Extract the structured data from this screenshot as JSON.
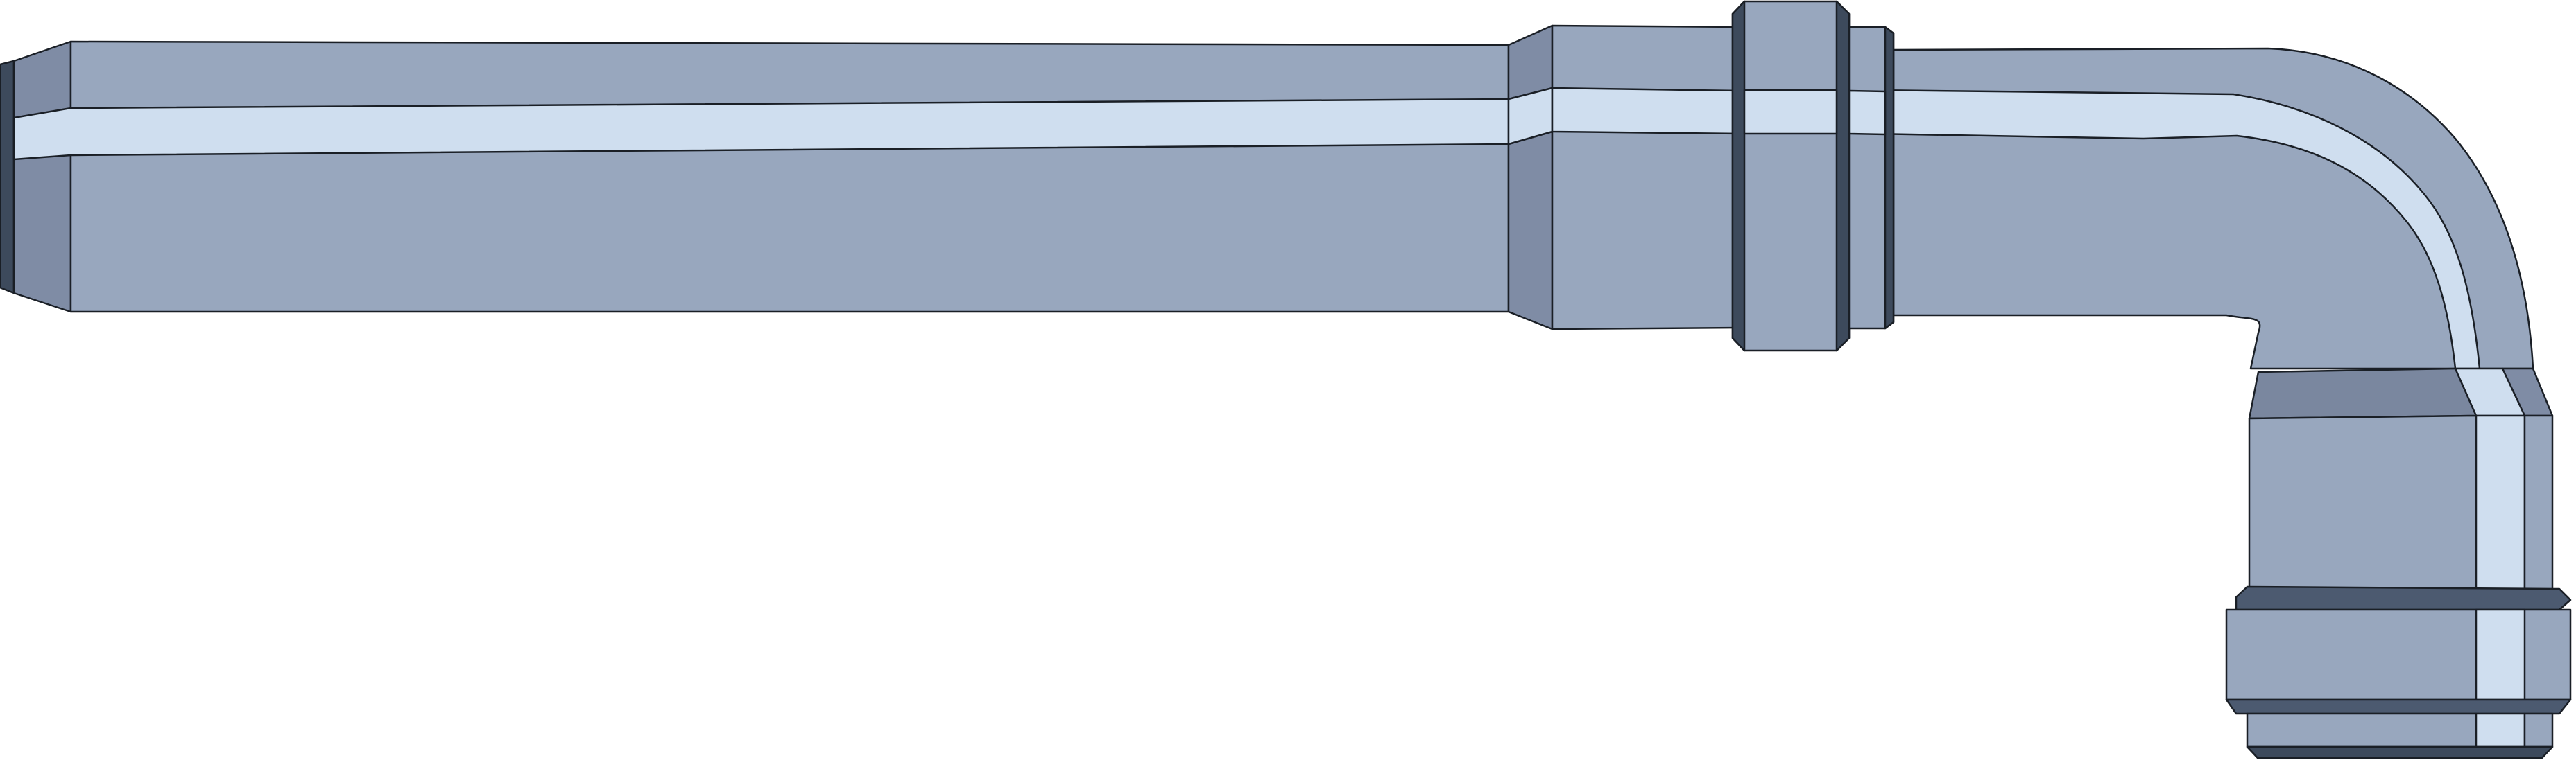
{
  "illustration": {
    "subject": "pipe-elbow-illustration",
    "colors": {
      "body": "#98a7be",
      "body_dark": "#7f8ca5",
      "highlight": "#cfdeef",
      "ring": "#3d4a5c",
      "ring_light": "#4c5a70",
      "outline": "#1a1f26",
      "background": "#ffffff"
    }
  }
}
